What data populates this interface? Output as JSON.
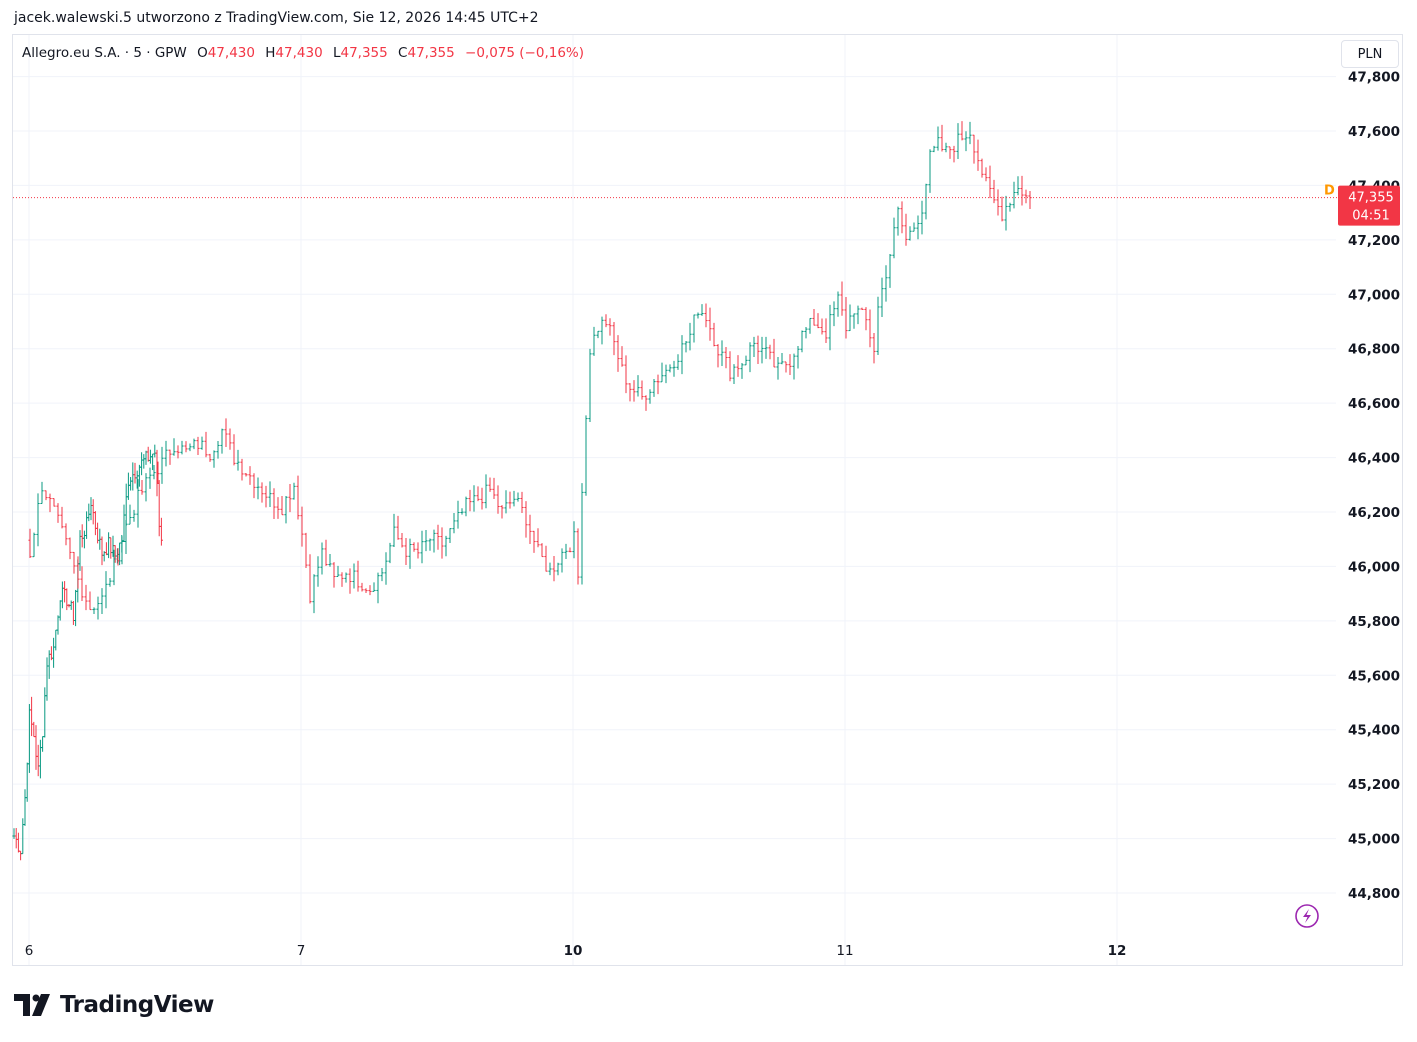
{
  "header": {
    "credit": "jacek.walewski.5 utworzono z TradingView.com, Sie 12, 2026 14:45 UTC+2"
  },
  "legend": {
    "symbol": "Allegro.eu S.A. · 5 · GPW",
    "open_label": "O",
    "open_value": "47,430",
    "high_label": "H",
    "high_value": "47,430",
    "low_label": "L",
    "low_value": "47,355",
    "close_label": "C",
    "close_value": "47,355",
    "change": "−0,075 (−0,16%)"
  },
  "currency_button": "PLN",
  "price_tag": {
    "price": "47,355",
    "countdown": "04:51",
    "color": "#f23645"
  },
  "dividend_marker": "D",
  "brand": {
    "name": "TradingView"
  },
  "colors": {
    "up": "#089981",
    "down": "#f23645",
    "grid": "#f0f3fa",
    "text": "#131722",
    "lightning": "#9c27b0"
  },
  "chart_data": {
    "type": "bar",
    "interval": "5",
    "ylim": [
      44.65,
      47.85
    ],
    "y_ticks": [
      "44,800",
      "45,000",
      "45,200",
      "45,400",
      "45,600",
      "45,800",
      "46,000",
      "46,200",
      "46,400",
      "46,600",
      "46,800",
      "47,000",
      "47,200",
      "47,400",
      "47,600",
      "47,800"
    ],
    "y_tick_values": [
      44.8,
      45.0,
      45.2,
      45.4,
      45.6,
      45.8,
      46.0,
      46.2,
      46.4,
      46.6,
      46.8,
      47.0,
      47.2,
      47.4,
      47.6,
      47.8
    ],
    "x_ticks": [
      "6",
      "7",
      "10",
      "11",
      "12"
    ],
    "x_tick_bold": [
      false,
      false,
      true,
      false,
      true
    ],
    "last_price": 47.355,
    "bars_per_day": 68,
    "days": [
      "5",
      "6",
      "7",
      "10",
      "11",
      "12"
    ],
    "close_path": [
      {
        "i": 0,
        "v": 45.01
      },
      {
        "i": 3,
        "v": 44.96
      },
      {
        "i": 5,
        "v": 45.15
      },
      {
        "i": 7,
        "v": 45.45
      },
      {
        "i": 9,
        "v": 45.38
      },
      {
        "i": 11,
        "v": 45.25
      },
      {
        "i": 13,
        "v": 45.4
      },
      {
        "i": 15,
        "v": 45.65
      },
      {
        "i": 18,
        "v": 45.7
      },
      {
        "i": 21,
        "v": 45.9
      },
      {
        "i": 24,
        "v": 45.88
      },
      {
        "i": 27,
        "v": 45.82
      },
      {
        "i": 30,
        "v": 46.1
      },
      {
        "i": 33,
        "v": 46.15
      },
      {
        "i": 35,
        "v": 46.24
      },
      {
        "i": 37,
        "v": 46.15
      },
      {
        "i": 40,
        "v": 46.05
      },
      {
        "i": 43,
        "v": 46.08
      },
      {
        "i": 46,
        "v": 46.04
      },
      {
        "i": 49,
        "v": 46.1
      },
      {
        "i": 52,
        "v": 46.32
      },
      {
        "i": 55,
        "v": 46.35
      },
      {
        "i": 58,
        "v": 46.38
      },
      {
        "i": 61,
        "v": 46.4
      },
      {
        "i": 64,
        "v": 46.42
      },
      {
        "i": 66,
        "v": 46.15
      },
      {
        "i": 68,
        "v": 46.05
      },
      {
        "i": 71,
        "v": 46.3
      },
      {
        "i": 74,
        "v": 46.2
      },
      {
        "i": 77,
        "v": 46.08
      },
      {
        "i": 80,
        "v": 45.95
      },
      {
        "i": 83,
        "v": 45.85
      },
      {
        "i": 86,
        "v": 45.88
      },
      {
        "i": 89,
        "v": 46.0
      },
      {
        "i": 92,
        "v": 46.15
      },
      {
        "i": 95,
        "v": 46.25
      },
      {
        "i": 98,
        "v": 46.33
      },
      {
        "i": 101,
        "v": 46.38
      },
      {
        "i": 104,
        "v": 46.45
      },
      {
        "i": 107,
        "v": 46.42
      },
      {
        "i": 110,
        "v": 46.45
      },
      {
        "i": 113,
        "v": 46.42
      },
      {
        "i": 116,
        "v": 46.5
      },
      {
        "i": 119,
        "v": 46.4
      },
      {
        "i": 122,
        "v": 46.35
      },
      {
        "i": 125,
        "v": 46.3
      },
      {
        "i": 128,
        "v": 46.25
      },
      {
        "i": 131,
        "v": 46.22
      },
      {
        "i": 134,
        "v": 46.3
      },
      {
        "i": 136,
        "v": 46.12
      },
      {
        "i": 138,
        "v": 45.9
      },
      {
        "i": 141,
        "v": 46.05
      },
      {
        "i": 144,
        "v": 45.95
      },
      {
        "i": 147,
        "v": 45.98
      },
      {
        "i": 150,
        "v": 45.95
      },
      {
        "i": 153,
        "v": 45.92
      },
      {
        "i": 156,
        "v": 45.98
      },
      {
        "i": 159,
        "v": 46.12
      },
      {
        "i": 162,
        "v": 46.06
      },
      {
        "i": 165,
        "v": 46.05
      },
      {
        "i": 168,
        "v": 46.1
      },
      {
        "i": 171,
        "v": 46.08
      },
      {
        "i": 174,
        "v": 46.15
      },
      {
        "i": 177,
        "v": 46.22
      },
      {
        "i": 180,
        "v": 46.25
      },
      {
        "i": 183,
        "v": 46.28
      },
      {
        "i": 186,
        "v": 46.2
      },
      {
        "i": 189,
        "v": 46.25
      },
      {
        "i": 192,
        "v": 46.18
      },
      {
        "i": 195,
        "v": 46.05
      },
      {
        "i": 198,
        "v": 45.98
      },
      {
        "i": 201,
        "v": 46.05
      },
      {
        "i": 204,
        "v": 46.1
      },
      {
        "i": 205,
        "v": 45.96
      },
      {
        "i": 206,
        "v": 46.3
      },
      {
        "i": 208,
        "v": 46.8
      },
      {
        "i": 210,
        "v": 46.88
      },
      {
        "i": 212,
        "v": 46.9
      },
      {
        "i": 214,
        "v": 46.82
      },
      {
        "i": 216,
        "v": 46.72
      },
      {
        "i": 218,
        "v": 46.66
      },
      {
        "i": 221,
        "v": 46.62
      },
      {
        "i": 224,
        "v": 46.68
      },
      {
        "i": 227,
        "v": 46.72
      },
      {
        "i": 230,
        "v": 46.78
      },
      {
        "i": 233,
        "v": 46.85
      },
      {
        "i": 235,
        "v": 46.95
      },
      {
        "i": 237,
        "v": 46.92
      },
      {
        "i": 240,
        "v": 46.8
      },
      {
        "i": 243,
        "v": 46.72
      },
      {
        "i": 246,
        "v": 46.75
      },
      {
        "i": 249,
        "v": 46.82
      },
      {
        "i": 252,
        "v": 46.78
      },
      {
        "i": 255,
        "v": 46.72
      },
      {
        "i": 258,
        "v": 46.76
      },
      {
        "i": 261,
        "v": 46.85
      },
      {
        "i": 264,
        "v": 46.9
      },
      {
        "i": 267,
        "v": 46.86
      },
      {
        "i": 270,
        "v": 46.98
      },
      {
        "i": 272,
        "v": 46.88
      },
      {
        "i": 274,
        "v": 46.95
      },
      {
        "i": 277,
        "v": 46.9
      },
      {
        "i": 279,
        "v": 46.8
      },
      {
        "i": 280,
        "v": 46.95
      },
      {
        "i": 283,
        "v": 47.15
      },
      {
        "i": 285,
        "v": 47.3
      },
      {
        "i": 287,
        "v": 47.2
      },
      {
        "i": 289,
        "v": 47.25
      },
      {
        "i": 291,
        "v": 47.32
      },
      {
        "i": 293,
        "v": 47.5
      },
      {
        "i": 295,
        "v": 47.55
      },
      {
        "i": 297,
        "v": 47.52
      },
      {
        "i": 299,
        "v": 47.55
      },
      {
        "i": 301,
        "v": 47.58
      },
      {
        "i": 303,
        "v": 47.6
      },
      {
        "i": 305,
        "v": 47.5
      },
      {
        "i": 307,
        "v": 47.4
      },
      {
        "i": 309,
        "v": 47.34
      },
      {
        "i": 311,
        "v": 47.3
      },
      {
        "i": 313,
        "v": 47.35
      },
      {
        "i": 315,
        "v": 47.4
      },
      {
        "i": 317,
        "v": 47.36
      },
      {
        "i": 318,
        "v": 47.355
      }
    ]
  }
}
